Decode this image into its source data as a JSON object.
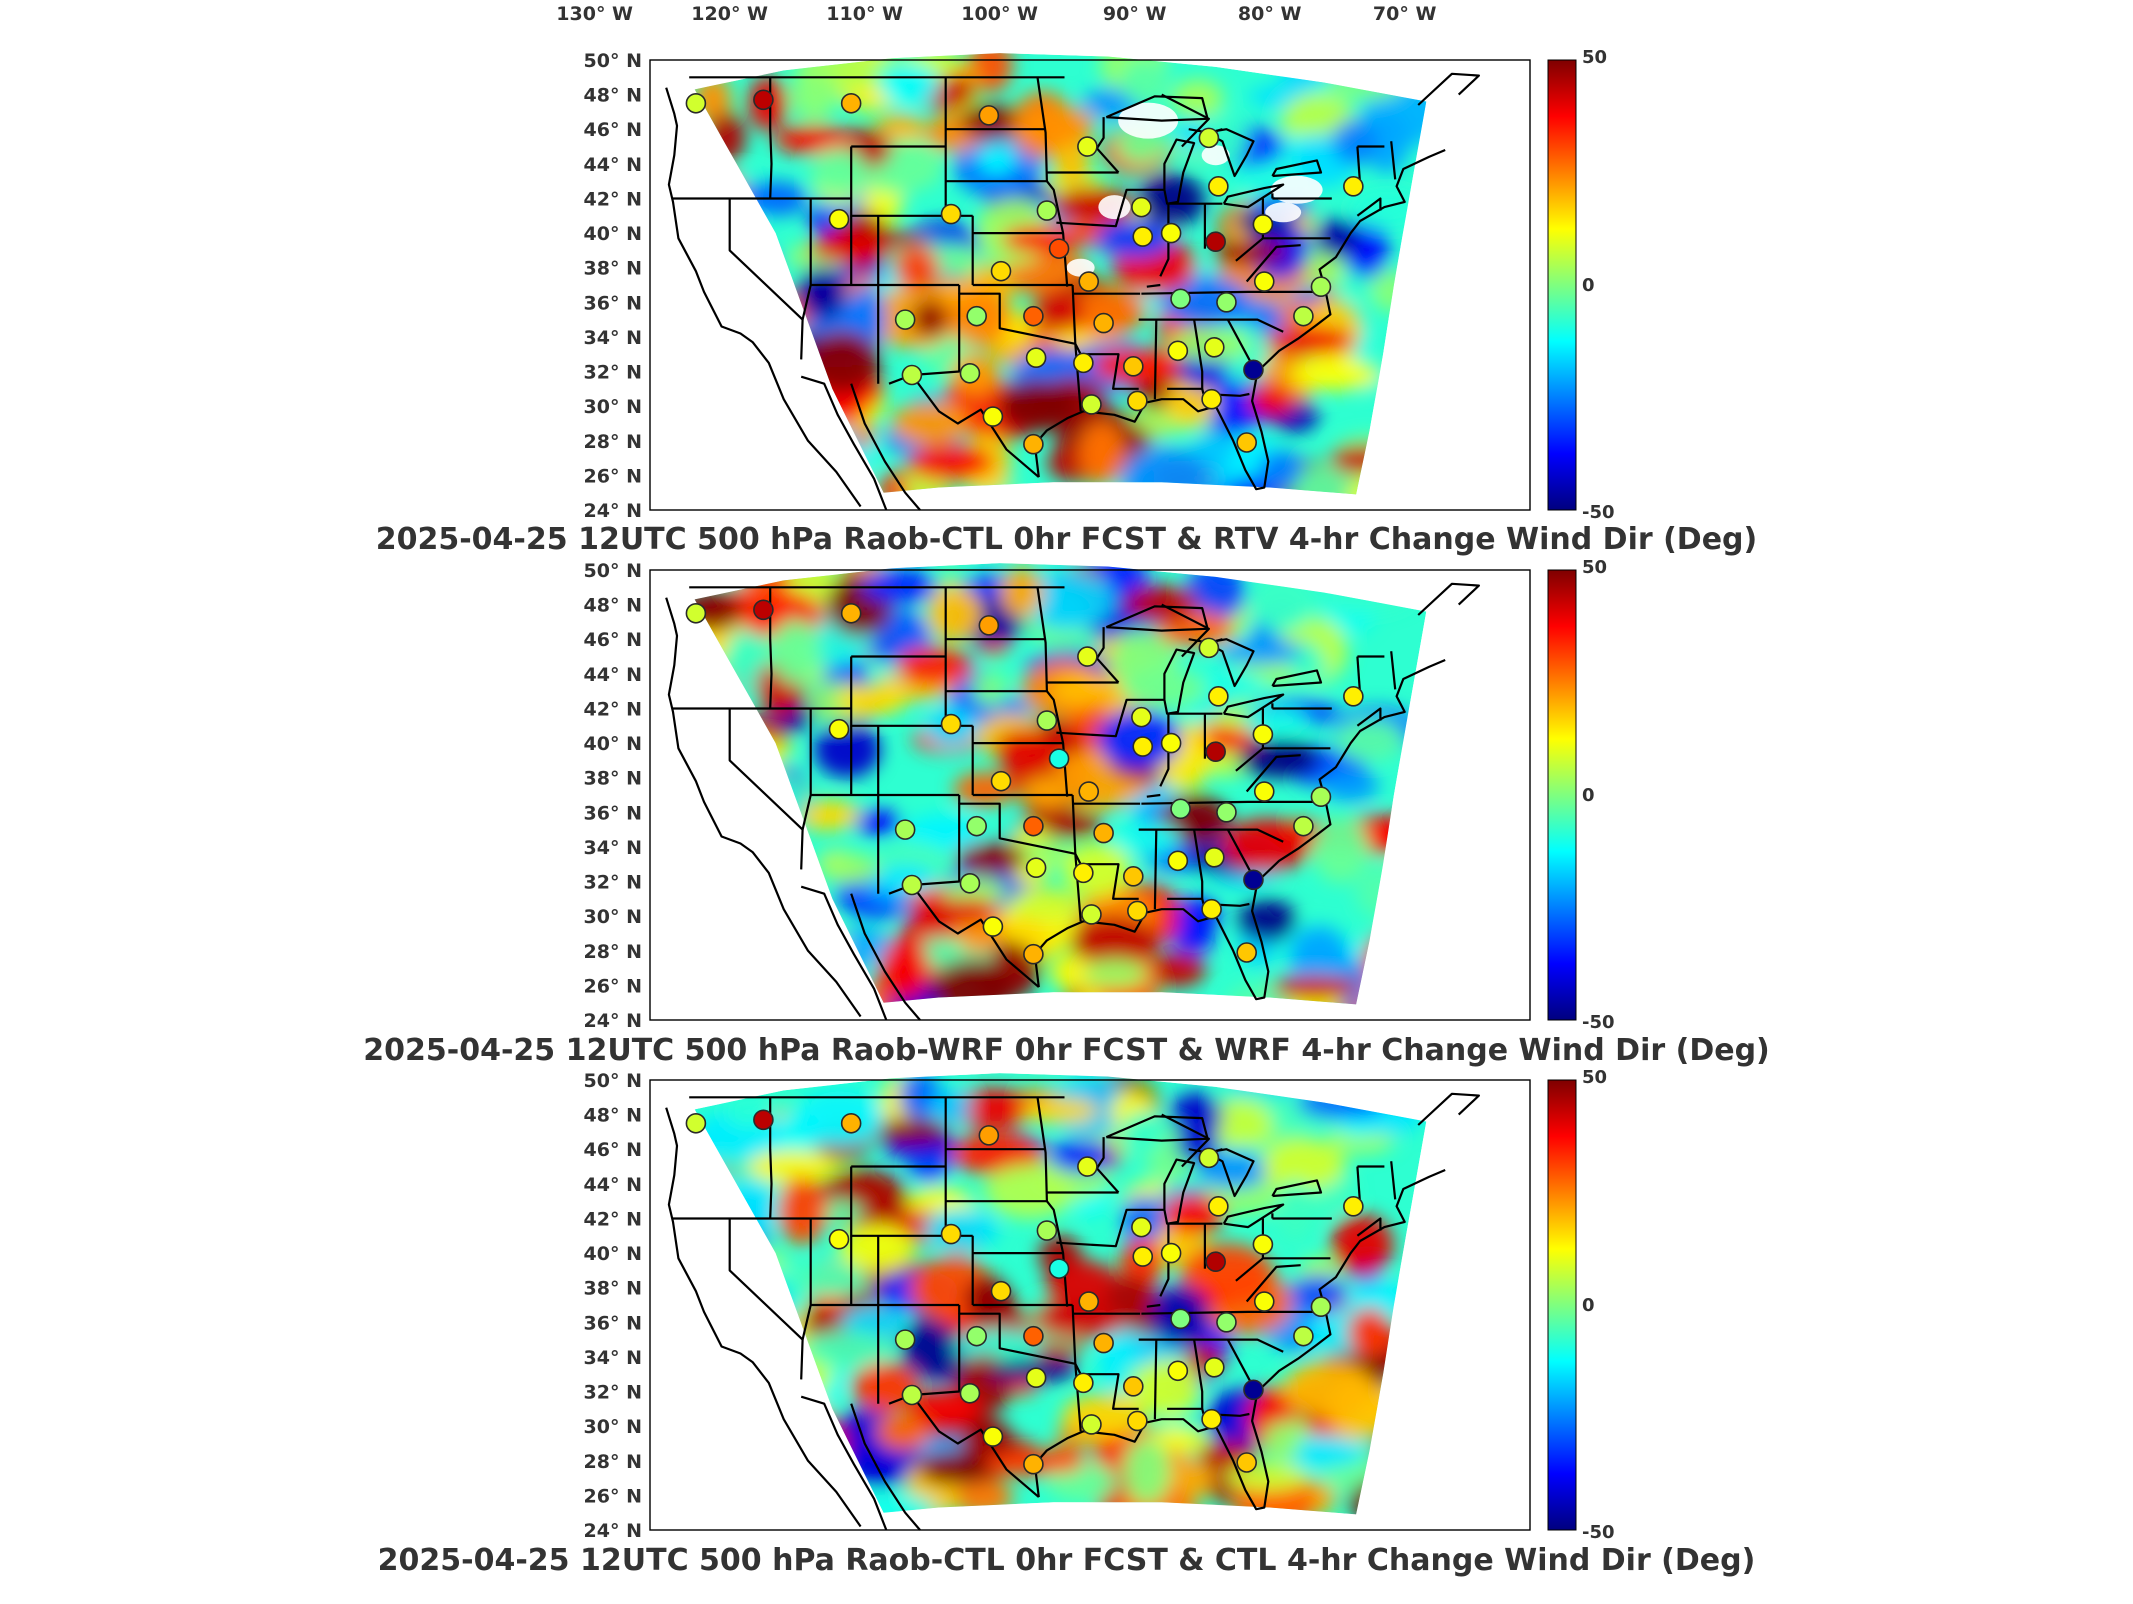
{
  "lon_ticks": [
    {
      "value": -130,
      "label": "130° W"
    },
    {
      "value": -120,
      "label": "120° W"
    },
    {
      "value": -110,
      "label": "110° W"
    },
    {
      "value": -100,
      "label": "100° W"
    },
    {
      "value": -90,
      "label": "90° W"
    },
    {
      "value": -80,
      "label": "80° W"
    },
    {
      "value": -70,
      "label": "70° W"
    }
  ],
  "colormap": [
    "#00007f",
    "#0000ff",
    "#007fff",
    "#00ffff",
    "#7fff7f",
    "#ffff00",
    "#ff7f00",
    "#ff0000",
    "#7f0000"
  ],
  "station_circle_color": "#2a2a2a",
  "map_line_color": "#000000",
  "chart_data": [
    {
      "type": "heatmap",
      "title": "2025-04-25 12UTC 500 hPa Raob-CTL 0hr FCST & RTV 4-hr Change Wind Dir (Deg)",
      "lat_ticks": [
        "50° N",
        "48° N",
        "46° N",
        "44° N",
        "42° N",
        "40° N",
        "38° N",
        "36° N",
        "34° N",
        "32° N",
        "30° N",
        "28° N",
        "26° N",
        "24° N"
      ],
      "colorbar": {
        "min": -50,
        "max": 50,
        "labels": [
          "50",
          "0",
          "-50"
        ]
      },
      "has_missing_data": true,
      "stations": [
        {
          "lon": -122.5,
          "lat": 47.5,
          "value": 8
        },
        {
          "lon": -117.5,
          "lat": 47.7,
          "value": 44
        },
        {
          "lon": -111.0,
          "lat": 47.5,
          "value": 20
        },
        {
          "lon": -100.8,
          "lat": 46.8,
          "value": 22
        },
        {
          "lon": -93.5,
          "lat": 45.0,
          "value": 10
        },
        {
          "lon": -84.5,
          "lat": 45.5,
          "value": 8
        },
        {
          "lon": -111.9,
          "lat": 40.8,
          "value": 12
        },
        {
          "lon": -103.6,
          "lat": 41.1,
          "value": 16
        },
        {
          "lon": -96.5,
          "lat": 41.3,
          "value": 4
        },
        {
          "lon": -89.5,
          "lat": 41.5,
          "value": 10
        },
        {
          "lon": -87.3,
          "lat": 40.0,
          "value": 12
        },
        {
          "lon": -83.8,
          "lat": 42.7,
          "value": 14
        },
        {
          "lon": -80.5,
          "lat": 40.5,
          "value": 12
        },
        {
          "lon": -73.8,
          "lat": 42.7,
          "value": 14
        },
        {
          "lon": -95.6,
          "lat": 39.1,
          "value": 30
        },
        {
          "lon": -89.4,
          "lat": 39.8,
          "value": 14
        },
        {
          "lon": -84.0,
          "lat": 39.5,
          "value": 45
        },
        {
          "lon": -99.9,
          "lat": 37.8,
          "value": 16
        },
        {
          "lon": -93.4,
          "lat": 37.2,
          "value": 20
        },
        {
          "lon": -80.4,
          "lat": 37.2,
          "value": 12
        },
        {
          "lon": -76.2,
          "lat": 36.9,
          "value": 4
        },
        {
          "lon": -86.6,
          "lat": 36.2,
          "value": 0
        },
        {
          "lon": -83.2,
          "lat": 36.0,
          "value": 2
        },
        {
          "lon": -107.0,
          "lat": 35.0,
          "value": 4
        },
        {
          "lon": -101.7,
          "lat": 35.2,
          "value": 2
        },
        {
          "lon": -97.5,
          "lat": 35.2,
          "value": 28
        },
        {
          "lon": -92.3,
          "lat": 34.8,
          "value": 20
        },
        {
          "lon": -97.3,
          "lat": 32.8,
          "value": 10
        },
        {
          "lon": -93.8,
          "lat": 32.5,
          "value": 14
        },
        {
          "lon": -90.1,
          "lat": 32.3,
          "value": 18
        },
        {
          "lon": -86.8,
          "lat": 33.2,
          "value": 12
        },
        {
          "lon": -84.1,
          "lat": 33.4,
          "value": 10
        },
        {
          "lon": -81.2,
          "lat": 32.1,
          "value": -48
        },
        {
          "lon": -106.5,
          "lat": 31.8,
          "value": 6
        },
        {
          "lon": -102.2,
          "lat": 31.9,
          "value": 4
        },
        {
          "lon": -100.5,
          "lat": 29.4,
          "value": 12
        },
        {
          "lon": -97.5,
          "lat": 27.8,
          "value": 20
        },
        {
          "lon": -93.2,
          "lat": 30.1,
          "value": 8
        },
        {
          "lon": -89.8,
          "lat": 30.3,
          "value": 16
        },
        {
          "lon": -84.3,
          "lat": 30.4,
          "value": 14
        },
        {
          "lon": -81.7,
          "lat": 27.9,
          "value": 18
        },
        {
          "lon": -77.5,
          "lat": 35.2,
          "value": 6
        }
      ]
    },
    {
      "type": "heatmap",
      "title": "2025-04-25 12UTC 500 hPa Raob-WRF 0hr FCST & WRF 4-hr Change Wind Dir (Deg)",
      "lat_ticks": [
        "50° N",
        "48° N",
        "46° N",
        "44° N",
        "42° N",
        "40° N",
        "38° N",
        "36° N",
        "34° N",
        "32° N",
        "30° N",
        "28° N",
        "26° N",
        "24° N"
      ],
      "colorbar": {
        "min": -50,
        "max": 50,
        "labels": [
          "50",
          "0",
          "-50"
        ]
      },
      "has_missing_data": false,
      "stations": [
        {
          "lon": -122.5,
          "lat": 47.5,
          "value": 8
        },
        {
          "lon": -117.5,
          "lat": 47.7,
          "value": 44
        },
        {
          "lon": -111.0,
          "lat": 47.5,
          "value": 20
        },
        {
          "lon": -100.8,
          "lat": 46.8,
          "value": 22
        },
        {
          "lon": -93.5,
          "lat": 45.0,
          "value": 10
        },
        {
          "lon": -84.5,
          "lat": 45.5,
          "value": 8
        },
        {
          "lon": -111.9,
          "lat": 40.8,
          "value": 12
        },
        {
          "lon": -103.6,
          "lat": 41.1,
          "value": 16
        },
        {
          "lon": -96.5,
          "lat": 41.3,
          "value": 4
        },
        {
          "lon": -89.5,
          "lat": 41.5,
          "value": 10
        },
        {
          "lon": -87.3,
          "lat": 40.0,
          "value": 12
        },
        {
          "lon": -83.8,
          "lat": 42.7,
          "value": 14
        },
        {
          "lon": -80.5,
          "lat": 40.5,
          "value": 12
        },
        {
          "lon": -73.8,
          "lat": 42.7,
          "value": 14
        },
        {
          "lon": -95.6,
          "lat": 39.1,
          "value": -10
        },
        {
          "lon": -89.4,
          "lat": 39.8,
          "value": 14
        },
        {
          "lon": -84.0,
          "lat": 39.5,
          "value": 45
        },
        {
          "lon": -99.9,
          "lat": 37.8,
          "value": 16
        },
        {
          "lon": -93.4,
          "lat": 37.2,
          "value": 20
        },
        {
          "lon": -80.4,
          "lat": 37.2,
          "value": 12
        },
        {
          "lon": -76.2,
          "lat": 36.9,
          "value": 4
        },
        {
          "lon": -86.6,
          "lat": 36.2,
          "value": 0
        },
        {
          "lon": -83.2,
          "lat": 36.0,
          "value": 2
        },
        {
          "lon": -107.0,
          "lat": 35.0,
          "value": 4
        },
        {
          "lon": -101.7,
          "lat": 35.2,
          "value": 2
        },
        {
          "lon": -97.5,
          "lat": 35.2,
          "value": 28
        },
        {
          "lon": -92.3,
          "lat": 34.8,
          "value": 20
        },
        {
          "lon": -97.3,
          "lat": 32.8,
          "value": 10
        },
        {
          "lon": -93.8,
          "lat": 32.5,
          "value": 14
        },
        {
          "lon": -90.1,
          "lat": 32.3,
          "value": 18
        },
        {
          "lon": -86.8,
          "lat": 33.2,
          "value": 12
        },
        {
          "lon": -84.1,
          "lat": 33.4,
          "value": 10
        },
        {
          "lon": -81.2,
          "lat": 32.1,
          "value": -48
        },
        {
          "lon": -106.5,
          "lat": 31.8,
          "value": 6
        },
        {
          "lon": -102.2,
          "lat": 31.9,
          "value": 4
        },
        {
          "lon": -100.5,
          "lat": 29.4,
          "value": 12
        },
        {
          "lon": -97.5,
          "lat": 27.8,
          "value": 20
        },
        {
          "lon": -93.2,
          "lat": 30.1,
          "value": 8
        },
        {
          "lon": -89.8,
          "lat": 30.3,
          "value": 16
        },
        {
          "lon": -84.3,
          "lat": 30.4,
          "value": 14
        },
        {
          "lon": -81.7,
          "lat": 27.9,
          "value": 18
        },
        {
          "lon": -77.5,
          "lat": 35.2,
          "value": 6
        }
      ]
    },
    {
      "type": "heatmap",
      "title": "2025-04-25 12UTC 500 hPa Raob-CTL 0hr FCST & CTL 4-hr Change Wind Dir (Deg)",
      "lat_ticks": [
        "50° N",
        "48° N",
        "46° N",
        "44° N",
        "42° N",
        "40° N",
        "38° N",
        "36° N",
        "34° N",
        "32° N",
        "30° N",
        "28° N",
        "26° N",
        "24° N"
      ],
      "colorbar": {
        "min": -50,
        "max": 50,
        "labels": [
          "50",
          "0",
          "-50"
        ]
      },
      "has_missing_data": false,
      "stations": [
        {
          "lon": -122.5,
          "lat": 47.5,
          "value": 8
        },
        {
          "lon": -117.5,
          "lat": 47.7,
          "value": 44
        },
        {
          "lon": -111.0,
          "lat": 47.5,
          "value": 20
        },
        {
          "lon": -100.8,
          "lat": 46.8,
          "value": 22
        },
        {
          "lon": -93.5,
          "lat": 45.0,
          "value": 10
        },
        {
          "lon": -84.5,
          "lat": 45.5,
          "value": 8
        },
        {
          "lon": -111.9,
          "lat": 40.8,
          "value": 12
        },
        {
          "lon": -103.6,
          "lat": 41.1,
          "value": 16
        },
        {
          "lon": -96.5,
          "lat": 41.3,
          "value": 4
        },
        {
          "lon": -89.5,
          "lat": 41.5,
          "value": 10
        },
        {
          "lon": -87.3,
          "lat": 40.0,
          "value": 12
        },
        {
          "lon": -83.8,
          "lat": 42.7,
          "value": 14
        },
        {
          "lon": -80.5,
          "lat": 40.5,
          "value": 12
        },
        {
          "lon": -73.8,
          "lat": 42.7,
          "value": 14
        },
        {
          "lon": -95.6,
          "lat": 39.1,
          "value": -10
        },
        {
          "lon": -89.4,
          "lat": 39.8,
          "value": 14
        },
        {
          "lon": -84.0,
          "lat": 39.5,
          "value": 45
        },
        {
          "lon": -99.9,
          "lat": 37.8,
          "value": 16
        },
        {
          "lon": -93.4,
          "lat": 37.2,
          "value": 20
        },
        {
          "lon": -80.4,
          "lat": 37.2,
          "value": 12
        },
        {
          "lon": -76.2,
          "lat": 36.9,
          "value": 4
        },
        {
          "lon": -86.6,
          "lat": 36.2,
          "value": 0
        },
        {
          "lon": -83.2,
          "lat": 36.0,
          "value": 2
        },
        {
          "lon": -107.0,
          "lat": 35.0,
          "value": 4
        },
        {
          "lon": -101.7,
          "lat": 35.2,
          "value": 2
        },
        {
          "lon": -97.5,
          "lat": 35.2,
          "value": 28
        },
        {
          "lon": -92.3,
          "lat": 34.8,
          "value": 20
        },
        {
          "lon": -97.3,
          "lat": 32.8,
          "value": 10
        },
        {
          "lon": -93.8,
          "lat": 32.5,
          "value": 14
        },
        {
          "lon": -90.1,
          "lat": 32.3,
          "value": 18
        },
        {
          "lon": -86.8,
          "lat": 33.2,
          "value": 12
        },
        {
          "lon": -84.1,
          "lat": 33.4,
          "value": 10
        },
        {
          "lon": -81.2,
          "lat": 32.1,
          "value": -48
        },
        {
          "lon": -106.5,
          "lat": 31.8,
          "value": 6
        },
        {
          "lon": -102.2,
          "lat": 31.9,
          "value": 4
        },
        {
          "lon": -100.5,
          "lat": 29.4,
          "value": 12
        },
        {
          "lon": -97.5,
          "lat": 27.8,
          "value": 20
        },
        {
          "lon": -93.2,
          "lat": 30.1,
          "value": 8
        },
        {
          "lon": -89.8,
          "lat": 30.3,
          "value": 16
        },
        {
          "lon": -84.3,
          "lat": 30.4,
          "value": 14
        },
        {
          "lon": -81.7,
          "lat": 27.9,
          "value": 18
        },
        {
          "lon": -77.5,
          "lat": 35.2,
          "value": 6
        }
      ]
    }
  ]
}
